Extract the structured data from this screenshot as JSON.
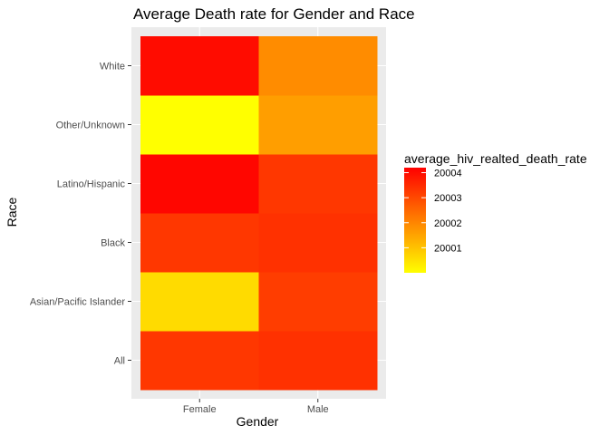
{
  "chart_data": {
    "type": "heatmap",
    "title": "Average Death rate for Gender and Race",
    "xlabel": "Gender",
    "ylabel": "Race",
    "x_categories": [
      "Female",
      "Male"
    ],
    "y_categories": [
      "All",
      "Asian/Pacific Islander",
      "Black",
      "Latino/Hispanic",
      "Other/Unknown",
      "White"
    ],
    "values": [
      [
        20003.3,
        20003.4
      ],
      [
        20000.6,
        20003.2
      ],
      [
        20003.3,
        20003.4
      ],
      [
        20004.1,
        20003.3
      ],
      [
        20000.0,
        20001.6
      ],
      [
        20004.0,
        20001.9
      ]
    ],
    "grid": true,
    "legend": {
      "title": "average_hiv_realted_death_rate",
      "position": "right",
      "ticks": [
        20001,
        20002,
        20003,
        20004
      ],
      "range": [
        20000.0,
        20004.2
      ],
      "low_color": "#FFFF00",
      "high_color": "#FF0000"
    },
    "colors": {
      "panel_background": "#EBEBEB",
      "gridline": "#FFFFFF"
    }
  }
}
